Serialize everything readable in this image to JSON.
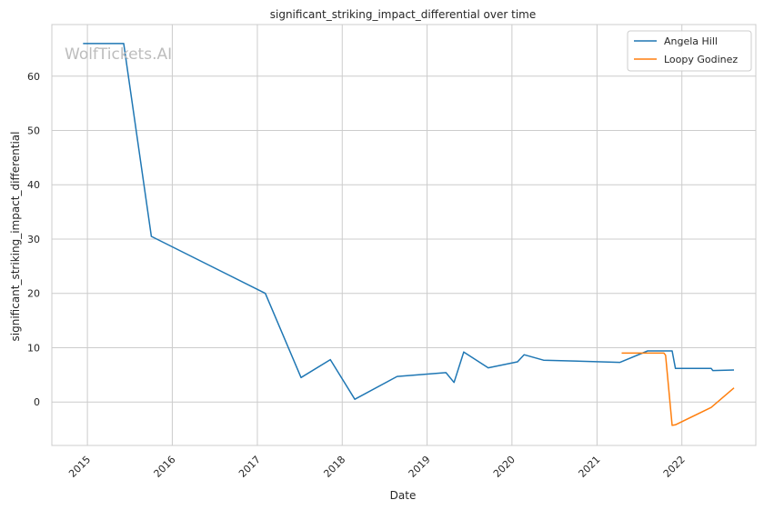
{
  "chart_data": {
    "type": "line",
    "title": "significant_striking_impact_differential over time",
    "xlabel": "Date",
    "ylabel": "significant_striking_impact_differential",
    "watermark": "WolfTickets.AI",
    "ylim": [
      -8,
      69.5
    ],
    "yticks": [
      0,
      10,
      20,
      30,
      40,
      50,
      60
    ],
    "xlim": [
      "2014-08-01",
      "2022-11-15"
    ],
    "xticks": [
      "2015",
      "2016",
      "2017",
      "2018",
      "2019",
      "2020",
      "2021",
      "2022"
    ],
    "grid": true,
    "legend_position": "top-right",
    "series": [
      {
        "name": "Angela Hill",
        "color": "#1f77b4",
        "points": [
          [
            "2014-12-13",
            66.0
          ],
          [
            "2015-06-06",
            66.0
          ],
          [
            "2015-10-03",
            30.5
          ],
          [
            "2017-02-04",
            20.0
          ],
          [
            "2017-07-08",
            4.5
          ],
          [
            "2017-11-11",
            7.8
          ],
          [
            "2018-02-24",
            0.5
          ],
          [
            "2018-08-25",
            4.7
          ],
          [
            "2019-03-23",
            5.4
          ],
          [
            "2019-04-27",
            3.6
          ],
          [
            "2019-06-08",
            9.2
          ],
          [
            "2019-09-21",
            6.3
          ],
          [
            "2020-01-25",
            7.4
          ],
          [
            "2020-02-22",
            8.7
          ],
          [
            "2020-05-16",
            7.7
          ],
          [
            "2021-04-10",
            7.3
          ],
          [
            "2021-08-07",
            9.4
          ],
          [
            "2021-11-20",
            9.4
          ],
          [
            "2021-12-04",
            6.2
          ],
          [
            "2022-05-07",
            6.2
          ],
          [
            "2022-05-14",
            5.8
          ],
          [
            "2022-08-13",
            5.9
          ]
        ]
      },
      {
        "name": "Loopy Godinez",
        "color": "#ff7f0e",
        "points": [
          [
            "2021-04-17",
            9.0
          ],
          [
            "2021-10-16",
            9.0
          ],
          [
            "2021-10-23",
            8.6
          ],
          [
            "2021-11-20",
            -4.3
          ],
          [
            "2021-12-04",
            -4.2
          ],
          [
            "2022-05-07",
            -1.0
          ],
          [
            "2022-08-13",
            2.6
          ]
        ]
      }
    ]
  }
}
